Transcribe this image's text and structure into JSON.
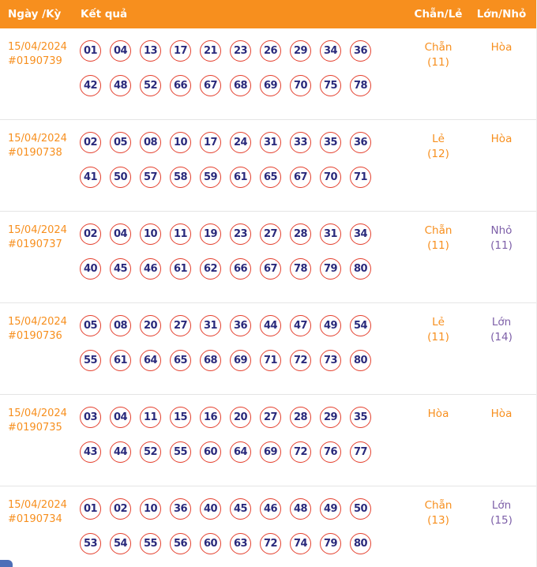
{
  "header": {
    "col_date": "Ngày /Kỳ",
    "col_result": "Kết quả",
    "col_even_odd": "Chẵn/Lẻ",
    "col_big_small": "Lớn/Nhỏ"
  },
  "colors": {
    "header_bg": "#f78f1e",
    "orange": "#f78f1e",
    "circle_border": "#e4402e",
    "number_navy": "#29297b",
    "purple": "#7d5fa8",
    "divider": "#e5e5e5",
    "fragment_blue": "#4d6fb8"
  },
  "rows": [
    {
      "date": "15/04/2024",
      "draw_id": "#0190739",
      "numbers_line1": [
        "01",
        "04",
        "13",
        "17",
        "21",
        "23",
        "26",
        "29",
        "34",
        "36"
      ],
      "numbers_line2": [
        "42",
        "48",
        "52",
        "66",
        "67",
        "68",
        "69",
        "70",
        "75",
        "78"
      ],
      "even_odd": {
        "label": "Chẵn",
        "count": "(11)",
        "tone": "orange"
      },
      "big_small": {
        "label": "Hòa",
        "count": "",
        "tone": "orange"
      }
    },
    {
      "date": "15/04/2024",
      "draw_id": "#0190738",
      "numbers_line1": [
        "02",
        "05",
        "08",
        "10",
        "17",
        "24",
        "31",
        "33",
        "35",
        "36"
      ],
      "numbers_line2": [
        "41",
        "50",
        "57",
        "58",
        "59",
        "61",
        "65",
        "67",
        "70",
        "71"
      ],
      "even_odd": {
        "label": "Lẻ",
        "count": "(12)",
        "tone": "orange"
      },
      "big_small": {
        "label": "Hòa",
        "count": "",
        "tone": "orange"
      }
    },
    {
      "date": "15/04/2024",
      "draw_id": "#0190737",
      "numbers_line1": [
        "02",
        "04",
        "10",
        "11",
        "19",
        "23",
        "27",
        "28",
        "31",
        "34"
      ],
      "numbers_line2": [
        "40",
        "45",
        "46",
        "61",
        "62",
        "66",
        "67",
        "78",
        "79",
        "80"
      ],
      "even_odd": {
        "label": "Chẵn",
        "count": "(11)",
        "tone": "orange"
      },
      "big_small": {
        "label": "Nhỏ",
        "count": "(11)",
        "tone": "purple"
      }
    },
    {
      "date": "15/04/2024",
      "draw_id": "#0190736",
      "numbers_line1": [
        "05",
        "08",
        "20",
        "27",
        "31",
        "36",
        "44",
        "47",
        "49",
        "54"
      ],
      "numbers_line2": [
        "55",
        "61",
        "64",
        "65",
        "68",
        "69",
        "71",
        "72",
        "73",
        "80"
      ],
      "even_odd": {
        "label": "Lẻ",
        "count": "(11)",
        "tone": "orange"
      },
      "big_small": {
        "label": "Lớn",
        "count": "(14)",
        "tone": "purple"
      }
    },
    {
      "date": "15/04/2024",
      "draw_id": "#0190735",
      "numbers_line1": [
        "03",
        "04",
        "11",
        "15",
        "16",
        "20",
        "27",
        "28",
        "29",
        "35"
      ],
      "numbers_line2": [
        "43",
        "44",
        "52",
        "55",
        "60",
        "64",
        "69",
        "72",
        "76",
        "77"
      ],
      "even_odd": {
        "label": "Hòa",
        "count": "",
        "tone": "orange"
      },
      "big_small": {
        "label": "Hòa",
        "count": "",
        "tone": "orange"
      }
    },
    {
      "date": "15/04/2024",
      "draw_id": "#0190734",
      "numbers_line1": [
        "01",
        "02",
        "10",
        "36",
        "40",
        "45",
        "46",
        "48",
        "49",
        "50"
      ],
      "numbers_line2": [
        "53",
        "54",
        "55",
        "56",
        "60",
        "63",
        "72",
        "74",
        "79",
        "80"
      ],
      "even_odd": {
        "label": "Chẵn",
        "count": "(13)",
        "tone": "orange"
      },
      "big_small": {
        "label": "Lớn",
        "count": "(15)",
        "tone": "purple"
      }
    }
  ]
}
